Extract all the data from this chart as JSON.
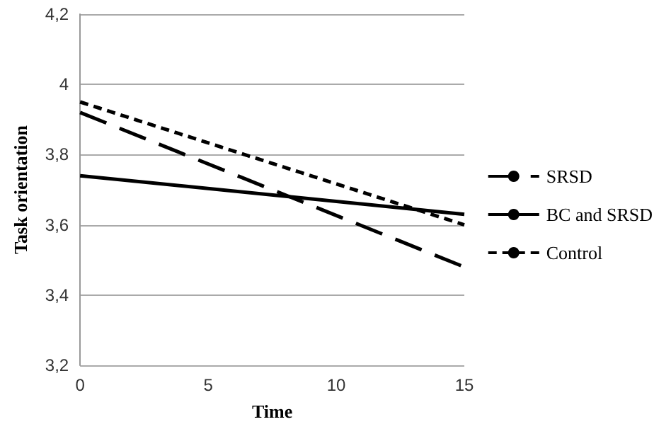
{
  "chart_data": {
    "type": "line",
    "xlabel": "Time",
    "ylabel": "Task orientation",
    "x": [
      0,
      15
    ],
    "series": [
      {
        "name": "SRSD",
        "color": "#000000",
        "values": [
          3.92,
          3.48
        ],
        "line_style": "dashed"
      },
      {
        "name": "BC and SRSD",
        "color": "#000000",
        "values": [
          3.74,
          3.63
        ],
        "line_style": "solid"
      },
      {
        "name": "Control",
        "color": "#000000",
        "values": [
          3.95,
          3.6
        ],
        "line_style": "dotted"
      }
    ],
    "xlim": [
      0,
      15
    ],
    "xticks": [
      0,
      5,
      10,
      15
    ],
    "ylim": [
      3.2,
      4.2
    ],
    "yticks": [
      {
        "value": 3.2,
        "label": "3,2"
      },
      {
        "value": 3.4,
        "label": "3,4"
      },
      {
        "value": 3.6,
        "label": "3,6"
      },
      {
        "value": 3.8,
        "label": "3,8"
      },
      4,
      {
        "value": 4.2,
        "label": "4,2"
      }
    ],
    "grid": "y",
    "legend": "right",
    "marker": "none"
  }
}
